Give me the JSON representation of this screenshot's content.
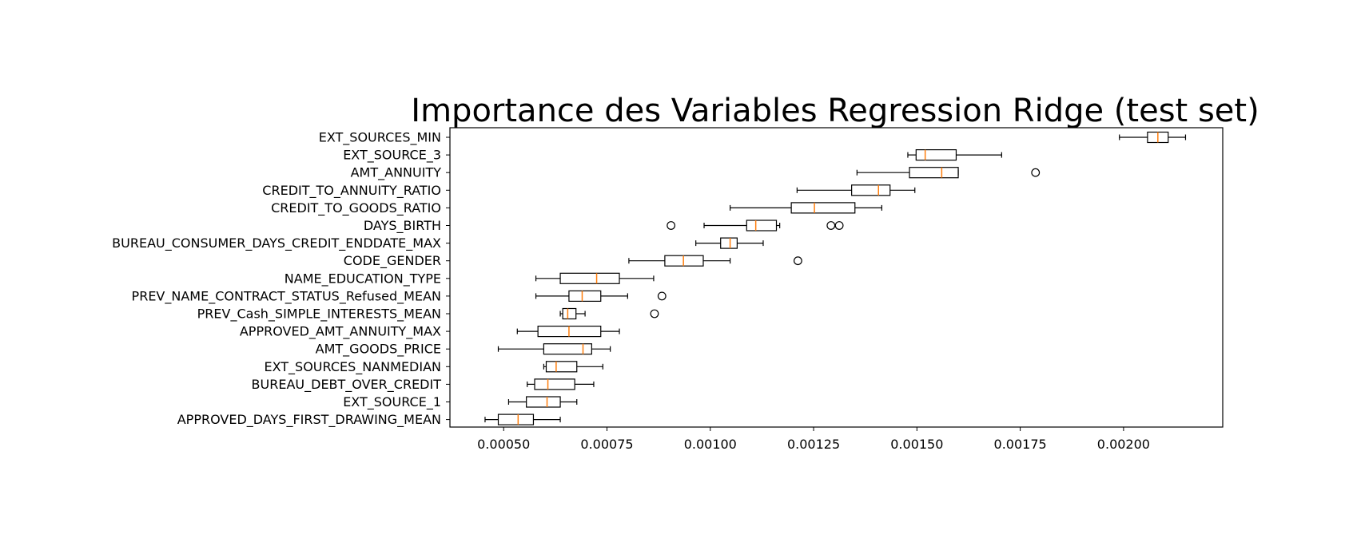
{
  "chart_data": {
    "type": "boxplot",
    "orientation": "horizontal",
    "title": "Importance des Variables Regression Ridge (test set)",
    "xlabel": "",
    "ylabel": "",
    "xlim": [
      0.00037,
      0.00224
    ],
    "x_ticks": [
      0.0005,
      0.00075,
      0.001,
      0.00125,
      0.0015,
      0.00175,
      0.002
    ],
    "x_tick_labels": [
      "0.00050",
      "0.00075",
      "0.00100",
      "0.00125",
      "0.00150",
      "0.00175",
      "0.00200"
    ],
    "grid": false,
    "colors": {
      "box": "#000000",
      "median": "#ff7f0e",
      "flier": "#000000"
    },
    "categories": [
      "EXT_SOURCES_MIN",
      "EXT_SOURCE_3",
      "AMT_ANNUITY",
      "CREDIT_TO_ANNUITY_RATIO",
      "CREDIT_TO_GOODS_RATIO",
      "DAYS_BIRTH",
      "BUREAU_CONSUMER_DAYS_CREDIT_ENDDATE_MAX",
      "CODE_GENDER",
      "NAME_EDUCATION_TYPE",
      "PREV_NAME_CONTRACT_STATUS_Refused_MEAN",
      "PREV_Cash_SIMPLE_INTERESTS_MEAN",
      "APPROVED_AMT_ANNUITY_MAX",
      "AMT_GOODS_PRICE",
      "EXT_SOURCES_NANMEDIAN",
      "BUREAU_DEBT_OVER_CREDIT",
      "EXT_SOURCE_1",
      "APPROVED_DAYS_FIRST_DRAWING_MEAN"
    ],
    "boxes": [
      {
        "whislo": 0.00199,
        "q1": 0.002058,
        "med": 0.002083,
        "q3": 0.002108,
        "whishi": 0.00215,
        "fliers": []
      },
      {
        "whislo": 0.001478,
        "q1": 0.001498,
        "med": 0.00152,
        "q3": 0.001595,
        "whishi": 0.001705,
        "fliers": []
      },
      {
        "whislo": 0.001355,
        "q1": 0.001482,
        "med": 0.00156,
        "q3": 0.0016,
        "whishi": 0.0016,
        "fliers": [
          0.001787
        ]
      },
      {
        "whislo": 0.00121,
        "q1": 0.001342,
        "med": 0.001407,
        "q3": 0.001435,
        "whishi": 0.001495,
        "fliers": []
      },
      {
        "whislo": 0.001048,
        "q1": 0.001196,
        "med": 0.001252,
        "q3": 0.00135,
        "whishi": 0.001415,
        "fliers": []
      },
      {
        "whislo": 0.000985,
        "q1": 0.001088,
        "med": 0.00111,
        "q3": 0.00116,
        "whishi": 0.001168,
        "fliers": [
          0.000905,
          0.001292,
          0.001312
        ]
      },
      {
        "whislo": 0.000965,
        "q1": 0.001025,
        "med": 0.001048,
        "q3": 0.001065,
        "whishi": 0.001128,
        "fliers": []
      },
      {
        "whislo": 0.000803,
        "q1": 0.00089,
        "med": 0.000935,
        "q3": 0.000983,
        "whishi": 0.001048,
        "fliers": [
          0.001212
        ]
      },
      {
        "whislo": 0.000578,
        "q1": 0.000637,
        "med": 0.000725,
        "q3": 0.00078,
        "whishi": 0.000863,
        "fliers": []
      },
      {
        "whislo": 0.000578,
        "q1": 0.000658,
        "med": 0.00069,
        "q3": 0.000735,
        "whishi": 0.0008,
        "fliers": [
          0.000883
        ]
      },
      {
        "whislo": 0.000637,
        "q1": 0.000643,
        "med": 0.000655,
        "q3": 0.000675,
        "whishi": 0.000697,
        "fliers": [
          0.000865
        ]
      },
      {
        "whislo": 0.000533,
        "q1": 0.000583,
        "med": 0.000658,
        "q3": 0.000735,
        "whishi": 0.00078,
        "fliers": []
      },
      {
        "whislo": 0.000487,
        "q1": 0.000597,
        "med": 0.000692,
        "q3": 0.000713,
        "whishi": 0.000758,
        "fliers": []
      },
      {
        "whislo": 0.000597,
        "q1": 0.000603,
        "med": 0.000627,
        "q3": 0.000677,
        "whishi": 0.00074,
        "fliers": []
      },
      {
        "whislo": 0.000557,
        "q1": 0.000575,
        "med": 0.000607,
        "q3": 0.000672,
        "whishi": 0.000718,
        "fliers": []
      },
      {
        "whislo": 0.000512,
        "q1": 0.000555,
        "med": 0.000605,
        "q3": 0.000637,
        "whishi": 0.000677,
        "fliers": []
      },
      {
        "whislo": 0.000455,
        "q1": 0.000487,
        "med": 0.000535,
        "q3": 0.000572,
        "whishi": 0.000637,
        "fliers": []
      }
    ]
  }
}
